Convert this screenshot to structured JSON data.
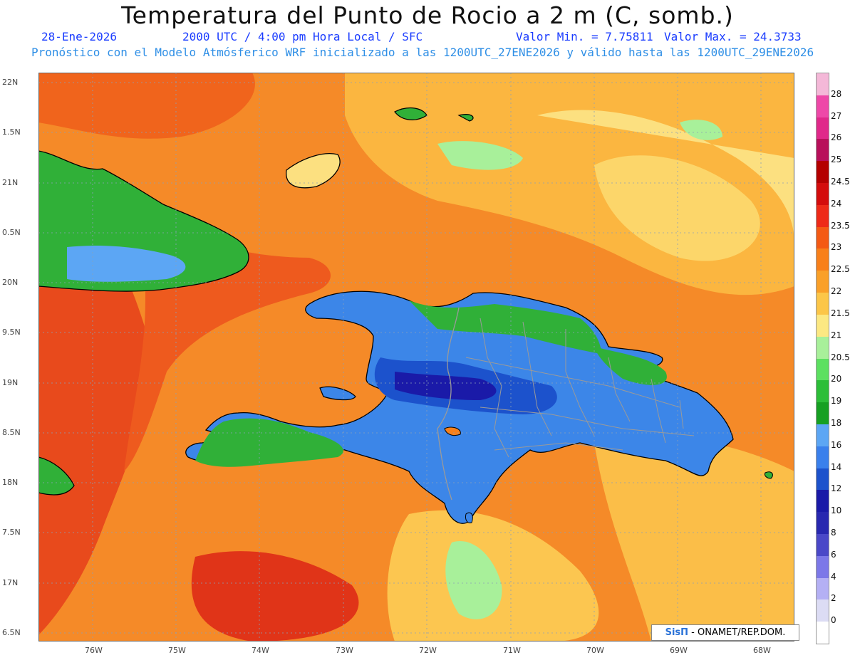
{
  "header": {
    "title": "Temperatura del Punto de Rocio a 2 m (C, somb.)",
    "date": "28-Ene-2026",
    "time": "2000 UTC / 4:00 pm Hora Local / SFC",
    "min_label": "Valor Min. = 7.75811",
    "max_label": "Valor Max. = 24.3733",
    "model_line": "Pronóstico con el Modelo Atmósferico WRF inicializado a las 1200UTC_27ENE2026 y válido hasta las  1200UTC_29ENE2026"
  },
  "axes": {
    "lat_labels": [
      "22N",
      "1.5N",
      "21N",
      "0.5N",
      "20N",
      "9.5N",
      "19N",
      "8.5N",
      "18N",
      "7.5N",
      "17N",
      "6.5N"
    ],
    "lon_labels": [
      "76W",
      "75W",
      "74W",
      "73W",
      "72W",
      "71W",
      "70W",
      "69W",
      "68W"
    ]
  },
  "colorbar": {
    "labels": [
      "28",
      "27",
      "26",
      "25",
      "24.5",
      "24",
      "23.5",
      "23",
      "22.5",
      "22",
      "21.5",
      "21",
      "20.5",
      "20",
      "19",
      "18",
      "16",
      "14",
      "12",
      "10",
      "8",
      "6",
      "4",
      "2",
      "0"
    ],
    "colors": [
      "#f4b8d8",
      "#ee48a8",
      "#e0288a",
      "#b8105a",
      "#b40000",
      "#d40c0c",
      "#ee2a18",
      "#f45a14",
      "#f8801a",
      "#faa028",
      "#fcc648",
      "#fce882",
      "#a8f09a",
      "#5ce060",
      "#2cbe38",
      "#16a022",
      "#5ca6f4",
      "#3a80ec",
      "#1c52cc",
      "#1a1aa8",
      "#2828b0",
      "#4a48c8",
      "#7c78e8",
      "#b4b0f4",
      "#dcdcf4",
      "#ffffff"
    ]
  },
  "credit": {
    "logo": "SisΠ",
    "text": "- ONAMET/REP.DOM."
  },
  "palette": {
    "ocean_base": "#f58a28",
    "dry_land": "#3c86e8",
    "wet_coast": "#30b038",
    "border": "#9a9a9a"
  }
}
